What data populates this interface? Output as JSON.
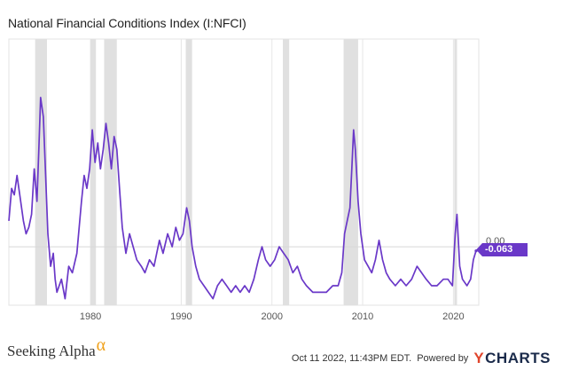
{
  "title": "National Financial Conditions Index (I:NFCI)",
  "footer": {
    "brand": "Seeking Alpha",
    "brand_symbol": "α",
    "timestamp": "Oct 11 2022, 11:43PM EDT.",
    "powered_by": "Powered by",
    "provider_y": "Y",
    "provider_rest": "CHARTS"
  },
  "colors": {
    "line": "#6a38c8",
    "recession": "#e0e0e0",
    "grid": "#e6e6e6"
  },
  "chart_data": {
    "type": "line",
    "title": "National Financial Conditions Index (I:NFCI)",
    "xlabel": "",
    "ylabel": "",
    "xlim": [
      1971,
      2022.8
    ],
    "ylim": [
      -0.9,
      3.2
    ],
    "x_ticks": [
      1980,
      1990,
      2000,
      2010,
      2020
    ],
    "zero_label": "0.00",
    "last_value_label": "-0.063",
    "recessions": [
      [
        1973.9,
        1975.2
      ],
      [
        1980.0,
        1980.6
      ],
      [
        1981.5,
        1982.9
      ],
      [
        1990.5,
        1991.2
      ],
      [
        2001.2,
        2001.9
      ],
      [
        2007.9,
        2009.5
      ],
      [
        2020.1,
        2020.4
      ]
    ],
    "series": [
      {
        "values": [
          [
            1971.0,
            0.4
          ],
          [
            1971.3,
            0.9
          ],
          [
            1971.6,
            0.8
          ],
          [
            1971.9,
            1.1
          ],
          [
            1972.2,
            0.8
          ],
          [
            1972.6,
            0.4
          ],
          [
            1972.9,
            0.2
          ],
          [
            1973.2,
            0.3
          ],
          [
            1973.5,
            0.5
          ],
          [
            1973.8,
            1.2
          ],
          [
            1974.1,
            0.7
          ],
          [
            1974.3,
            1.5
          ],
          [
            1974.5,
            2.3
          ],
          [
            1974.8,
            2.0
          ],
          [
            1975.0,
            1.3
          ],
          [
            1975.3,
            0.2
          ],
          [
            1975.6,
            -0.3
          ],
          [
            1975.9,
            -0.1
          ],
          [
            1976.1,
            -0.5
          ],
          [
            1976.3,
            -0.7
          ],
          [
            1976.8,
            -0.5
          ],
          [
            1977.2,
            -0.8
          ],
          [
            1977.6,
            -0.3
          ],
          [
            1978.0,
            -0.4
          ],
          [
            1978.5,
            -0.1
          ],
          [
            1979.0,
            0.7
          ],
          [
            1979.3,
            1.1
          ],
          [
            1979.6,
            0.9
          ],
          [
            1979.9,
            1.2
          ],
          [
            1980.2,
            1.8
          ],
          [
            1980.5,
            1.3
          ],
          [
            1980.8,
            1.6
          ],
          [
            1981.1,
            1.2
          ],
          [
            1981.4,
            1.5
          ],
          [
            1981.7,
            1.9
          ],
          [
            1982.0,
            1.6
          ],
          [
            1982.3,
            1.2
          ],
          [
            1982.6,
            1.7
          ],
          [
            1982.9,
            1.5
          ],
          [
            1983.2,
            0.9
          ],
          [
            1983.5,
            0.3
          ],
          [
            1983.9,
            -0.1
          ],
          [
            1984.3,
            0.2
          ],
          [
            1984.7,
            0.0
          ],
          [
            1985.1,
            -0.2
          ],
          [
            1985.6,
            -0.3
          ],
          [
            1986.0,
            -0.4
          ],
          [
            1986.5,
            -0.2
          ],
          [
            1987.0,
            -0.3
          ],
          [
            1987.6,
            0.1
          ],
          [
            1988.0,
            -0.1
          ],
          [
            1988.5,
            0.2
          ],
          [
            1989.0,
            0.0
          ],
          [
            1989.4,
            0.3
          ],
          [
            1989.8,
            0.1
          ],
          [
            1990.2,
            0.2
          ],
          [
            1990.6,
            0.6
          ],
          [
            1990.9,
            0.4
          ],
          [
            1991.2,
            0.0
          ],
          [
            1991.6,
            -0.3
          ],
          [
            1992.0,
            -0.5
          ],
          [
            1992.5,
            -0.6
          ],
          [
            1993.0,
            -0.7
          ],
          [
            1993.5,
            -0.8
          ],
          [
            1994.0,
            -0.6
          ],
          [
            1994.5,
            -0.5
          ],
          [
            1995.0,
            -0.6
          ],
          [
            1995.5,
            -0.7
          ],
          [
            1996.0,
            -0.6
          ],
          [
            1996.5,
            -0.7
          ],
          [
            1997.0,
            -0.6
          ],
          [
            1997.5,
            -0.7
          ],
          [
            1998.0,
            -0.5
          ],
          [
            1998.5,
            -0.2
          ],
          [
            1998.9,
            0.0
          ],
          [
            1999.3,
            -0.2
          ],
          [
            1999.8,
            -0.3
          ],
          [
            2000.3,
            -0.2
          ],
          [
            2000.8,
            0.0
          ],
          [
            2001.3,
            -0.1
          ],
          [
            2001.8,
            -0.2
          ],
          [
            2002.3,
            -0.4
          ],
          [
            2002.8,
            -0.3
          ],
          [
            2003.3,
            -0.5
          ],
          [
            2003.8,
            -0.6
          ],
          [
            2004.5,
            -0.7
          ],
          [
            2005.2,
            -0.7
          ],
          [
            2006.0,
            -0.7
          ],
          [
            2006.7,
            -0.6
          ],
          [
            2007.3,
            -0.6
          ],
          [
            2007.7,
            -0.4
          ],
          [
            2008.0,
            0.2
          ],
          [
            2008.3,
            0.4
          ],
          [
            2008.6,
            0.6
          ],
          [
            2008.8,
            1.2
          ],
          [
            2009.0,
            1.8
          ],
          [
            2009.2,
            1.5
          ],
          [
            2009.5,
            0.7
          ],
          [
            2009.8,
            0.2
          ],
          [
            2010.2,
            -0.2
          ],
          [
            2010.6,
            -0.3
          ],
          [
            2011.0,
            -0.4
          ],
          [
            2011.4,
            -0.2
          ],
          [
            2011.8,
            0.1
          ],
          [
            2012.2,
            -0.2
          ],
          [
            2012.6,
            -0.4
          ],
          [
            2013.0,
            -0.5
          ],
          [
            2013.6,
            -0.6
          ],
          [
            2014.2,
            -0.5
          ],
          [
            2014.8,
            -0.6
          ],
          [
            2015.4,
            -0.5
          ],
          [
            2016.0,
            -0.3
          ],
          [
            2016.5,
            -0.4
          ],
          [
            2017.0,
            -0.5
          ],
          [
            2017.6,
            -0.6
          ],
          [
            2018.2,
            -0.6
          ],
          [
            2018.9,
            -0.5
          ],
          [
            2019.4,
            -0.5
          ],
          [
            2019.9,
            -0.6
          ],
          [
            2020.2,
            0.2
          ],
          [
            2020.4,
            0.5
          ],
          [
            2020.7,
            -0.3
          ],
          [
            2021.0,
            -0.5
          ],
          [
            2021.5,
            -0.6
          ],
          [
            2021.9,
            -0.5
          ],
          [
            2022.2,
            -0.2
          ],
          [
            2022.5,
            -0.063
          ]
        ]
      }
    ]
  }
}
